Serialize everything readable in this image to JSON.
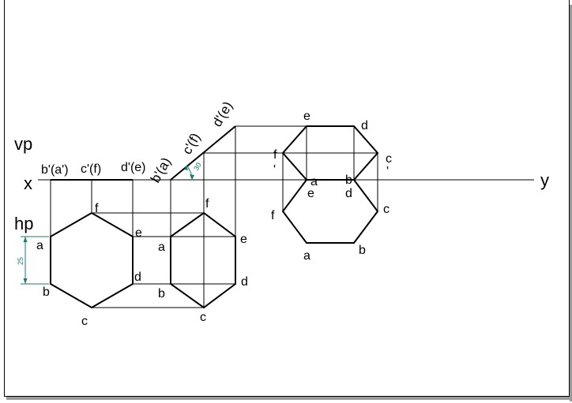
{
  "axis": {
    "x_label": "x",
    "y_label": "y",
    "vp_label": "vp",
    "hp_label": "hp"
  },
  "front_view_1": {
    "left": "b'(a')",
    "middle": "c'(f)",
    "right": "d'(e)"
  },
  "top_view_1": {
    "a": "a",
    "b": "b",
    "c": "c",
    "d": "d",
    "e": "e",
    "f": "f",
    "dimension": "25"
  },
  "front_view_2": {
    "p1": "b'(a)",
    "p2": "c'(f)",
    "p3": "d'(e)",
    "angle": "30"
  },
  "top_view_2": {
    "a": "a",
    "b": "b",
    "c": "c",
    "d": "d",
    "e": "e",
    "f": "f"
  },
  "side_view_upper": {
    "e": "e",
    "d": "d",
    "f": "f",
    "c": "c",
    "a": "a",
    "b": "b",
    "f_prime": "'",
    "c_prime": "'"
  },
  "side_view_lower": {
    "e": "e",
    "d": "d",
    "f": "f",
    "c": "c",
    "a": "a",
    "b": "b"
  }
}
